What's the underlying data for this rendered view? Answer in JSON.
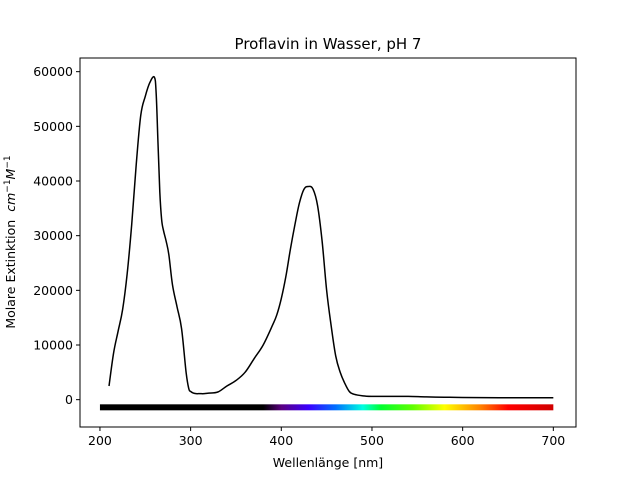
{
  "chart_data": {
    "type": "line",
    "title": "Proflavin in Wasser, pH 7",
    "xlabel": "Wellenlänge [nm]",
    "ylabel": "Molare Extinktion",
    "ylabel_unit_main": "cm",
    "ylabel_unit_exp1": "−1",
    "ylabel_unit_main2": "M",
    "ylabel_unit_exp2": "−1",
    "xlim": [
      178,
      725
    ],
    "ylim": [
      -5000,
      62500
    ],
    "xticks": [
      200,
      300,
      400,
      500,
      600,
      700
    ],
    "yticks": [
      0,
      10000,
      20000,
      30000,
      40000,
      50000,
      60000
    ],
    "grid": false,
    "line_color": "#000000",
    "series": [
      {
        "x": [
          210,
          215,
          220,
          225,
          230,
          235,
          240,
          245,
          250,
          255,
          260,
          262,
          264,
          266,
          268,
          270,
          273,
          276,
          280,
          285,
          290,
          295,
          298,
          300,
          303,
          306,
          310,
          315,
          320,
          330,
          340,
          350,
          360,
          370,
          380,
          390,
          395,
          400,
          405,
          410,
          415,
          420,
          425,
          430,
          435,
          440,
          445,
          450,
          455,
          460,
          465,
          470,
          475,
          480,
          490,
          500,
          510,
          520,
          540,
          560,
          580,
          600,
          650,
          700
        ],
        "y": [
          2500,
          8500,
          12500,
          16500,
          23000,
          32000,
          43000,
          52000,
          55500,
          58000,
          59000,
          56000,
          47000,
          38000,
          33000,
          31000,
          29000,
          26500,
          21000,
          17000,
          13000,
          5000,
          2000,
          1500,
          1200,
          1100,
          1100,
          1100,
          1200,
          1400,
          2500,
          3500,
          5000,
          7500,
          10000,
          13500,
          15500,
          18500,
          22500,
          27500,
          32000,
          36000,
          38500,
          39000,
          38500,
          35500,
          29000,
          20000,
          13500,
          8000,
          5000,
          3000,
          1500,
          1000,
          700,
          600,
          600,
          600,
          600,
          500,
          450,
          400,
          350,
          350
        ]
      }
    ],
    "spectrum_bar": {
      "x_start": 200,
      "x_end": 700,
      "y": -1400,
      "uv_color": "#000000",
      "visible_start": 380,
      "stops": [
        {
          "nm": 380,
          "color": "#000000"
        },
        {
          "nm": 400,
          "color": "#5a0080"
        },
        {
          "nm": 430,
          "color": "#3a00ff"
        },
        {
          "nm": 460,
          "color": "#0070ff"
        },
        {
          "nm": 490,
          "color": "#00ffe0"
        },
        {
          "nm": 510,
          "color": "#00ff30"
        },
        {
          "nm": 545,
          "color": "#60ff00"
        },
        {
          "nm": 580,
          "color": "#ffff00"
        },
        {
          "nm": 620,
          "color": "#ff8000"
        },
        {
          "nm": 650,
          "color": "#ff0000"
        },
        {
          "nm": 700,
          "color": "#d00000"
        }
      ]
    }
  }
}
